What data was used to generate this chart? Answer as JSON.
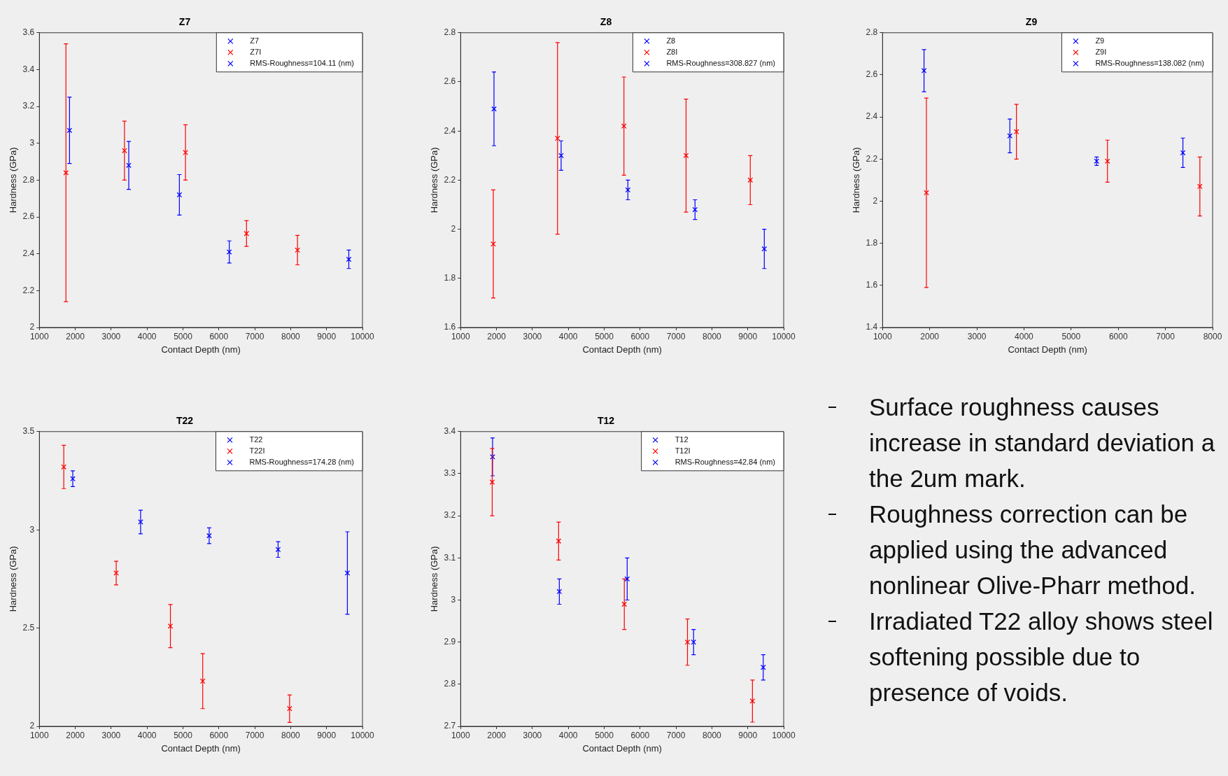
{
  "chart_data": [
    {
      "type": "scatter",
      "title": "Z7",
      "xlabel": "Contact Depth (nm)",
      "ylabel": "Hardness (GPa)",
      "xlim": [
        1000,
        10000
      ],
      "xticks": [
        1000,
        2000,
        3000,
        4000,
        5000,
        6000,
        7000,
        8000,
        9000,
        10000
      ],
      "ylim": [
        2,
        3.6
      ],
      "yticks": [
        2,
        2.2,
        2.4,
        2.6,
        2.8,
        3,
        3.2,
        3.4,
        3.6
      ],
      "legend": "top right",
      "marker": "cross",
      "series": [
        {
          "name": "Z7",
          "color": "#0000ff",
          "x": [
            1840,
            3490,
            4900,
            6290,
            9620
          ],
          "values": [
            3.07,
            2.88,
            2.72,
            2.41,
            2.37
          ],
          "errors": [
            0.18,
            0.13,
            0.11,
            0.06,
            0.05
          ]
        },
        {
          "name": "Z7I",
          "color": "#ff0000",
          "x": [
            1740,
            3370,
            5070,
            6770,
            8190
          ],
          "values": [
            2.84,
            2.96,
            2.95,
            2.51,
            2.42
          ],
          "errors": [
            0.7,
            0.16,
            0.15,
            0.07,
            0.08
          ]
        },
        {
          "name": "RMS-Roughness=104.11 (nm)",
          "color": "#0000ff"
        }
      ]
    },
    {
      "type": "scatter",
      "title": "Z8",
      "xlabel": "Contact Depth (nm)",
      "ylabel": "Hardness (GPa)",
      "xlim": [
        1000,
        10000
      ],
      "xticks": [
        1000,
        2000,
        3000,
        4000,
        5000,
        6000,
        7000,
        8000,
        9000,
        10000
      ],
      "ylim": [
        1.6,
        2.8
      ],
      "yticks": [
        1.6,
        1.8,
        2,
        2.2,
        2.4,
        2.6,
        2.8
      ],
      "legend": "top right",
      "marker": "cross",
      "series": [
        {
          "name": "Z8",
          "color": "#0000ff",
          "x": [
            1930,
            3800,
            5660,
            7530,
            9460
          ],
          "values": [
            2.49,
            2.3,
            2.16,
            2.08,
            1.92
          ],
          "errors": [
            0.15,
            0.06,
            0.04,
            0.04,
            0.08
          ]
        },
        {
          "name": "Z8I",
          "color": "#ff0000",
          "x": [
            1910,
            3700,
            5550,
            7280,
            9070
          ],
          "values": [
            1.94,
            2.37,
            2.42,
            2.3,
            2.2
          ],
          "errors": [
            0.22,
            0.39,
            0.2,
            0.23,
            0.1
          ]
        },
        {
          "name": "RMS-Roughness=308.827 (nm)",
          "color": "#0000ff"
        }
      ]
    },
    {
      "type": "scatter",
      "title": "Z9",
      "xlabel": "Contact Depth (nm)",
      "ylabel": "Hardness (GPa)",
      "xlim": [
        1000,
        8000
      ],
      "xticks": [
        1000,
        2000,
        3000,
        4000,
        5000,
        6000,
        7000,
        8000
      ],
      "ylim": [
        1.4,
        2.8
      ],
      "yticks": [
        1.4,
        1.6,
        1.8,
        2,
        2.2,
        2.4,
        2.6,
        2.8
      ],
      "legend": "top right",
      "marker": "cross",
      "series": [
        {
          "name": "Z9",
          "color": "#0000ff",
          "x": [
            1880,
            3700,
            5540,
            7370
          ],
          "values": [
            2.62,
            2.31,
            2.19,
            2.23
          ],
          "errors": [
            0.1,
            0.08,
            0.02,
            0.07
          ]
        },
        {
          "name": "Z9I",
          "color": "#ff0000",
          "x": [
            1930,
            3840,
            5770,
            7730
          ],
          "values": [
            2.04,
            2.33,
            2.19,
            2.07
          ],
          "errors": [
            0.45,
            0.13,
            0.1,
            0.14
          ]
        },
        {
          "name": "RMS-Roughness=138.082 (nm)",
          "color": "#0000ff"
        }
      ]
    },
    {
      "type": "scatter",
      "title": "T22",
      "xlabel": "Contact Depth (nm)",
      "ylabel": "Hardness (GPa)",
      "xlim": [
        1000,
        10000
      ],
      "xticks": [
        1000,
        2000,
        3000,
        4000,
        5000,
        6000,
        7000,
        8000,
        9000,
        10000
      ],
      "ylim": [
        2,
        3.5
      ],
      "yticks": [
        2,
        2.5,
        3,
        3.5
      ],
      "legend": "top right",
      "marker": "cross",
      "series": [
        {
          "name": "T22",
          "color": "#0000ff",
          "x": [
            1930,
            3820,
            5730,
            7650,
            9580
          ],
          "values": [
            3.26,
            3.04,
            2.97,
            2.9,
            2.78
          ],
          "errors": [
            0.04,
            0.06,
            0.04,
            0.04,
            0.21
          ]
        },
        {
          "name": "T22I",
          "color": "#ff0000",
          "x": [
            1680,
            3140,
            4650,
            5550,
            7970
          ],
          "values": [
            3.32,
            2.78,
            2.51,
            2.23,
            2.09
          ],
          "errors": [
            0.11,
            0.06,
            0.11,
            0.14,
            0.07
          ]
        },
        {
          "name": "RMS-Roughness=174.28 (nm)",
          "color": "#0000ff"
        }
      ]
    },
    {
      "type": "scatter",
      "title": "T12",
      "xlabel": "Contact Depth (nm)",
      "ylabel": "Hardness (GPa)",
      "xlim": [
        1000,
        10000
      ],
      "xticks": [
        1000,
        2000,
        3000,
        4000,
        5000,
        6000,
        7000,
        8000,
        9000,
        10000
      ],
      "ylim": [
        2.7,
        3.4
      ],
      "yticks": [
        2.7,
        2.8,
        2.9,
        3,
        3.1,
        3.2,
        3.3,
        3.4
      ],
      "legend": "top right",
      "marker": "cross",
      "series": [
        {
          "name": "T12",
          "color": "#0000ff",
          "x": [
            1890,
            3750,
            5640,
            7490,
            9430
          ],
          "values": [
            3.34,
            3.02,
            3.05,
            2.9,
            2.84
          ],
          "errors": [
            0.045,
            0.03,
            0.05,
            0.03,
            0.03
          ]
        },
        {
          "name": "T12I",
          "color": "#ff0000",
          "x": [
            1880,
            3730,
            5560,
            7320,
            9130
          ],
          "values": [
            3.28,
            3.14,
            2.99,
            2.9,
            2.76
          ],
          "errors": [
            0.08,
            0.045,
            0.06,
            0.055,
            0.05
          ]
        },
        {
          "name": "RMS-Roughness=42.84 (nm)",
          "color": "#0000ff"
        }
      ]
    },
    {
      "type": "other",
      "annotations": [
        "Surface roughness causes increase in standard deviation a the 2um mark.",
        "Roughness correction can be applied using the advanced nonlinear Olive-Pharr method.",
        "Irradiated T22 alloy shows steel softening possible due to presence of voids."
      ]
    }
  ]
}
